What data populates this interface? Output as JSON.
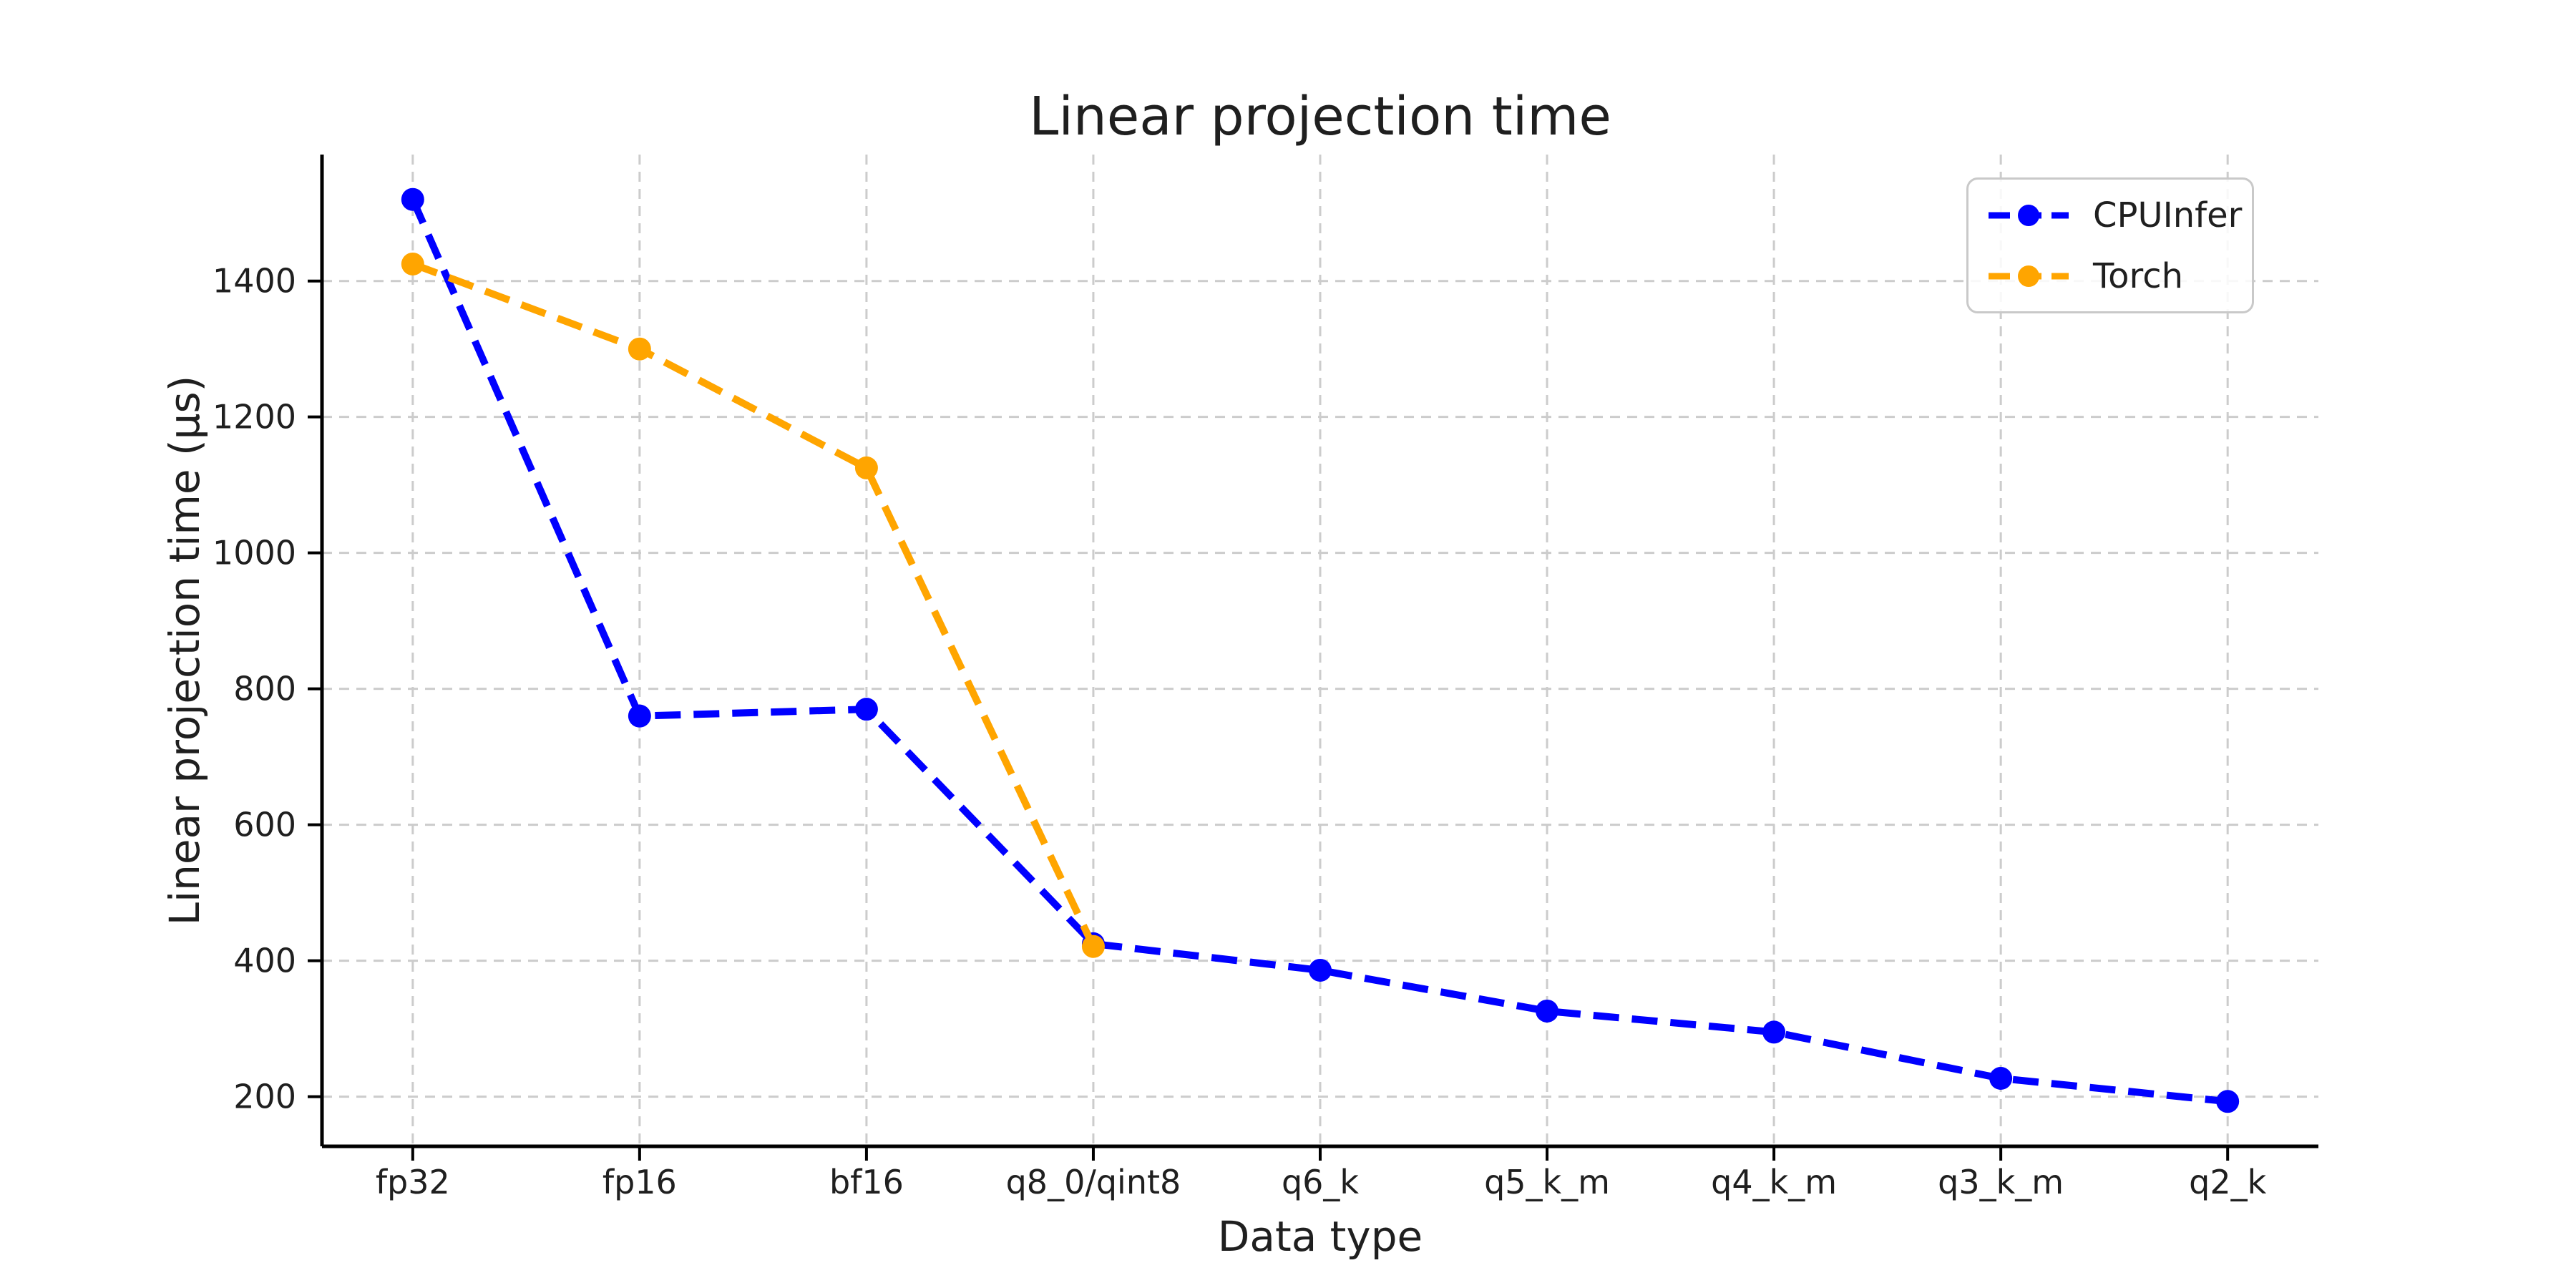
{
  "chart_data": {
    "type": "line",
    "title": "Linear projection time",
    "xlabel": "Data type",
    "ylabel": "Linear projection time (μs)",
    "categories": [
      "fp32",
      "fp16",
      "bf16",
      "q8_0/qint8",
      "q6_k",
      "q5_k_m",
      "q4_k_m",
      "q3_k_m",
      "q2_k"
    ],
    "series": [
      {
        "name": "CPUInfer",
        "color": "#0000FF",
        "linestyle": "dashed",
        "marker": "circle",
        "values": [
          1520,
          760,
          770,
          425,
          386,
          326,
          295,
          227,
          193
        ]
      },
      {
        "name": "Torch",
        "color": "#FFA500",
        "linestyle": "dashed",
        "marker": "circle",
        "values": [
          1425,
          1300,
          1125,
          421,
          null,
          null,
          null,
          null,
          null
        ]
      }
    ],
    "yticks": [
      200,
      400,
      600,
      800,
      1000,
      1200,
      1400
    ],
    "ylim": [
      127,
      1586
    ],
    "grid": true,
    "grid_style": "dashed",
    "legend_position": "upper right",
    "grid_color": "#CCCCCC",
    "axis_color": "#000000",
    "text_color": "#1F1F1F",
    "background": "#FFFFFF"
  }
}
